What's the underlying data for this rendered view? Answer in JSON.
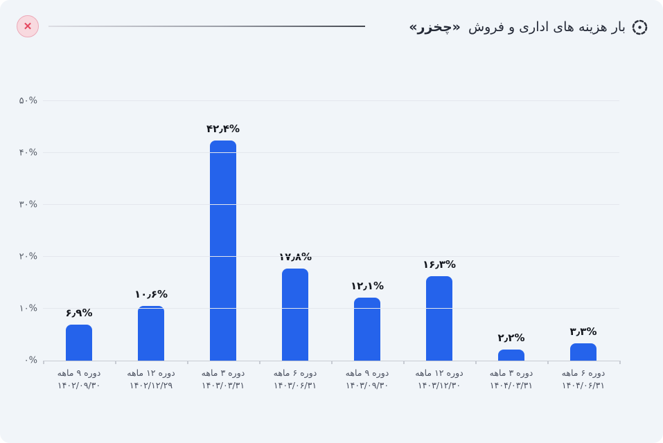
{
  "header": {
    "title_main": "بار هزینه های اداری و فروش",
    "title_ticker": "«چخزر»",
    "close_label": "✕"
  },
  "icons": {
    "title_icon": "dashed-circle-target-icon",
    "close_icon": "x-close-icon"
  },
  "colors": {
    "background": "#f1f5f9",
    "bar": "#2563eb",
    "close_bg": "#f8d9df",
    "close_border": "#eba9b8",
    "close_x": "#e4475f",
    "gridline": "#e4e7ed",
    "axis_text": "#4b5160",
    "value_text": "#13161d"
  },
  "chart_data": {
    "type": "bar",
    "title": "بار هزینه های اداری و فروش «چخزر»",
    "xlabel": "",
    "ylabel": "",
    "ylim": [
      0,
      50
    ],
    "grid": true,
    "legend": "none",
    "bar_color": "#2563eb",
    "yticks": [
      {
        "value": 0,
        "label": "۰%"
      },
      {
        "value": 10,
        "label": "۱۰%"
      },
      {
        "value": 20,
        "label": "۲۰%"
      },
      {
        "value": 30,
        "label": "۳۰%"
      },
      {
        "value": 40,
        "label": "۴۰%"
      },
      {
        "value": 50,
        "label": "۵۰%"
      }
    ],
    "categories": [
      {
        "period": "دوره ۹ ماهه",
        "date": "۱۴۰۲/۰۹/۳۰"
      },
      {
        "period": "دوره ۱۲ ماهه",
        "date": "۱۴۰۲/۱۲/۲۹"
      },
      {
        "period": "دوره ۳ ماهه",
        "date": "۱۴۰۳/۰۳/۳۱"
      },
      {
        "period": "دوره ۶ ماهه",
        "date": "۱۴۰۳/۰۶/۳۱"
      },
      {
        "period": "دوره ۹ ماهه",
        "date": "۱۴۰۳/۰۹/۳۰"
      },
      {
        "period": "دوره ۱۲ ماهه",
        "date": "۱۴۰۳/۱۲/۳۰"
      },
      {
        "period": "دوره ۳ ماهه",
        "date": "۱۴۰۴/۰۳/۳۱"
      },
      {
        "period": "دوره ۶ ماهه",
        "date": "۱۴۰۴/۰۶/۳۱"
      }
    ],
    "values": [
      6.9,
      10.6,
      42.4,
      17.8,
      12.1,
      16.3,
      2.2,
      3.3
    ],
    "value_labels": [
      "۶٫۹%",
      "۱۰٫۶%",
      "۴۲٫۴%",
      "۱۷٫۸%",
      "۱۲٫۱%",
      "۱۶٫۳%",
      "۲٫۲%",
      "۳٫۳%"
    ]
  }
}
